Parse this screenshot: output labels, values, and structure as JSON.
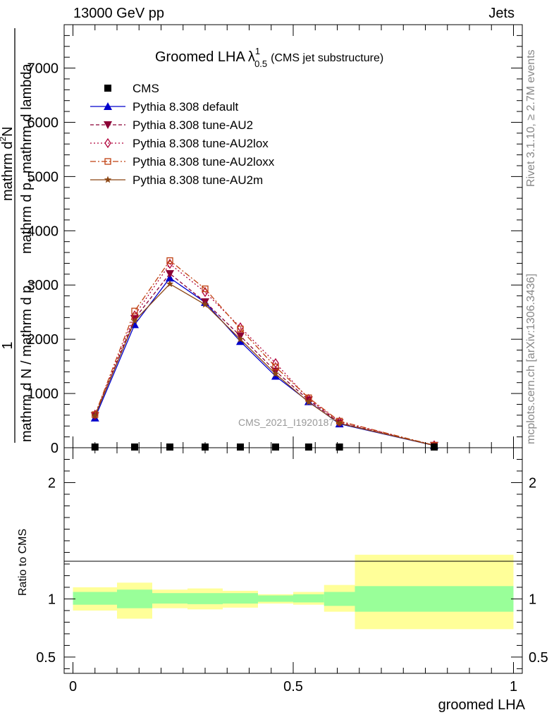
{
  "header": {
    "left": "13000 GeV pp",
    "right": "Jets"
  },
  "side_labels": {
    "rivet": "Rivet 3.1.10, ≥ 2.7M events",
    "mcplots": "mcplots.cern.ch [arXiv:1306.3436]"
  },
  "title": {
    "main": "Groomed LHA",
    "lambda": "λ",
    "sup": "1",
    "sub": "0.5",
    "note": "(CMS jet substructure)"
  },
  "watermark": "CMS_2021_I1920187",
  "ylabel": {
    "lhs": "1",
    "numerator": "mathrm d",
    "numerator_sup": "2",
    "numerator_rest": "N",
    "den1": "mathrm d N / mathrm d p",
    "den1_sub": "T",
    "den2": "mathrm d p",
    "den2_sub": "T",
    "den2_rest": " mathrm d lambda"
  },
  "ratio_ylabel": "Ratio to CMS",
  "xlabel": "groomed LHA",
  "chart_data": {
    "type": "line",
    "x": [
      0.05,
      0.14,
      0.22,
      0.3,
      0.38,
      0.46,
      0.535,
      0.605,
      0.82
    ],
    "bin_edges": [
      0.0,
      0.1,
      0.18,
      0.26,
      0.34,
      0.42,
      0.5,
      0.57,
      0.64,
      1.0
    ],
    "xlim": [
      -0.02,
      1.02
    ],
    "main_ylim": [
      0,
      7800
    ],
    "main_yticks": [
      0,
      1000,
      2000,
      3000,
      4000,
      5000,
      6000,
      7000
    ],
    "main_ytick_labels": [
      "0",
      "1000",
      "2000",
      "3000",
      "4000",
      "5000",
      "6000",
      "7000"
    ],
    "ratio_ylim": [
      0.36,
      2.3
    ],
    "ratio_yticks": [
      0.5,
      1,
      2
    ],
    "ratio_ytick_labels": [
      "0.5",
      "1",
      "2"
    ],
    "xticks": [
      0,
      0.5,
      1
    ],
    "xtick_labels": [
      "0",
      "0.5",
      "1"
    ],
    "series": [
      {
        "name": "CMS",
        "color": "#000000",
        "marker": "square",
        "values": [
          0,
          0,
          0,
          0,
          0,
          0,
          0,
          0,
          0
        ]
      },
      {
        "name": "Pythia 8.308 default",
        "color": "#0000cc",
        "dash": "",
        "marker": "triangle-up",
        "values": [
          550,
          2270,
          3130,
          2680,
          1960,
          1320,
          850,
          440,
          40
        ]
      },
      {
        "name": "Pythia 8.308 tune-AU2",
        "color": "#8b0035",
        "dash": "5,3",
        "marker": "triangle-down",
        "values": [
          590,
          2380,
          3210,
          2690,
          2060,
          1410,
          880,
          460,
          42
        ]
      },
      {
        "name": "Pythia 8.308 tune-AU2lox",
        "color": "#b0003a",
        "dash": "2,3",
        "marker": "diamond-open",
        "values": [
          610,
          2440,
          3390,
          2870,
          2220,
          1560,
          900,
          480,
          45
        ]
      },
      {
        "name": "Pythia 8.308 tune-AU2loxx",
        "color": "#c04010",
        "dash": "8,3,2,3",
        "marker": "square-open",
        "values": [
          610,
          2520,
          3450,
          2930,
          2190,
          1490,
          920,
          490,
          45
        ]
      },
      {
        "name": "Pythia 8.308 tune-AU2m",
        "color": "#8b4513",
        "dash": "",
        "marker": "star",
        "values": [
          590,
          2340,
          3020,
          2640,
          2000,
          1360,
          840,
          450,
          42
        ]
      }
    ],
    "ratio_bands": {
      "inner_color": "#99ff99",
      "outer_color": "#ffff99",
      "inner": [
        [
          0.95,
          1.06
        ],
        [
          0.92,
          1.08
        ],
        [
          0.96,
          1.05
        ],
        [
          0.955,
          1.05
        ],
        [
          0.96,
          1.05
        ],
        [
          0.975,
          1.03
        ],
        [
          0.97,
          1.04
        ],
        [
          0.94,
          1.06
        ],
        [
          0.89,
          1.11
        ]
      ],
      "outer": [
        [
          0.9,
          1.1
        ],
        [
          0.83,
          1.14
        ],
        [
          0.92,
          1.08
        ],
        [
          0.91,
          1.09
        ],
        [
          0.925,
          1.07
        ],
        [
          0.96,
          1.04
        ],
        [
          0.95,
          1.06
        ],
        [
          0.89,
          1.12
        ],
        [
          0.74,
          1.38
        ]
      ]
    }
  }
}
